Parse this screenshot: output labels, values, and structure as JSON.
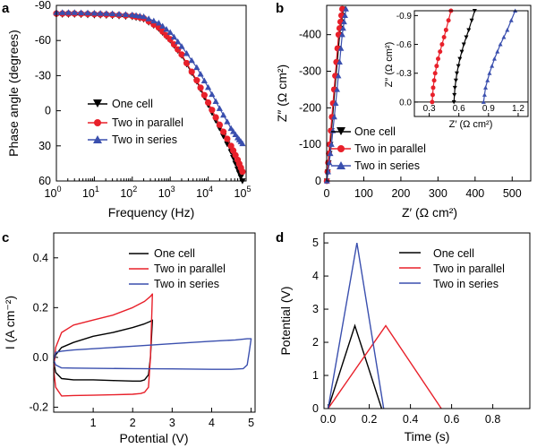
{
  "colors": {
    "one_cell": "#000000",
    "two_parallel": "#e8202a",
    "two_series": "#3a4fae",
    "parallel_marker": "#e8202a",
    "series_marker": "#3a4fae"
  },
  "legend": {
    "one_cell": "One cell",
    "two_parallel": "Two in parallel",
    "two_series": "Two in series"
  },
  "chart_data": [
    {
      "panel": "a",
      "type": "line",
      "xlabel": "Frequency (Hz)",
      "ylabel": "Phase angle (degrees)",
      "x_scale": "log",
      "xlim": [
        1,
        100000
      ],
      "ylim": [
        -90,
        60
      ],
      "y_inverted": true,
      "x_ticks": [
        "10^0",
        "10^1",
        "10^2",
        "10^3",
        "10^4",
        "10^5"
      ],
      "y_ticks": [
        -90,
        -60,
        -30,
        0,
        30,
        60
      ],
      "legend_position": "lower-left",
      "series": [
        {
          "name": "One cell",
          "marker": "triangle-down",
          "x": [
            1,
            3,
            10,
            30,
            100,
            200,
            500,
            1000,
            2000,
            5000,
            10000,
            20000,
            40000,
            60000,
            80000
          ],
          "y": [
            -82,
            -82,
            -81.5,
            -81,
            -80,
            -78,
            -70,
            -60,
            -47,
            -25,
            -5,
            15,
            35,
            50,
            60
          ]
        },
        {
          "name": "Two in parallel",
          "marker": "circle",
          "x": [
            1,
            3,
            10,
            30,
            100,
            200,
            500,
            1000,
            2000,
            5000,
            10000,
            20000,
            40000,
            60000,
            80000
          ],
          "y": [
            -83,
            -83,
            -82.5,
            -82,
            -81,
            -79,
            -71,
            -61,
            -48,
            -26,
            -7,
            12,
            30,
            42,
            52
          ]
        },
        {
          "name": "Two in series",
          "marker": "triangle-up",
          "x": [
            1,
            3,
            10,
            30,
            100,
            200,
            500,
            1000,
            2000,
            5000,
            10000,
            20000,
            40000,
            60000,
            80000
          ],
          "y": [
            -84,
            -84,
            -83.5,
            -83,
            -82,
            -80.5,
            -75,
            -67,
            -55,
            -37,
            -20,
            -2,
            15,
            23,
            28
          ]
        }
      ]
    },
    {
      "panel": "b",
      "type": "scatter",
      "xlabel": "Z′ (Ω cm²)",
      "ylabel": "Z″ (Ω cm²)",
      "xlim": [
        0,
        550
      ],
      "ylim": [
        0,
        -480
      ],
      "x_ticks": [
        0,
        100,
        200,
        300,
        400,
        500
      ],
      "y_ticks": [
        0,
        -100,
        -200,
        -300,
        -400
      ],
      "legend_position": "lower-right",
      "series": [
        {
          "name": "One cell",
          "marker": "triangle-down",
          "x": [
            0.5,
            10,
            22,
            35,
            45
          ],
          "y": [
            0,
            -100,
            -250,
            -400,
            -470
          ]
        },
        {
          "name": "Two in parallel",
          "marker": "circle",
          "x": [
            0.3,
            8,
            20,
            32,
            42
          ],
          "y": [
            0,
            -100,
            -250,
            -400,
            -470
          ]
        },
        {
          "name": "Two in series",
          "marker": "triangle-up",
          "x": [
            0.8,
            13,
            28,
            42,
            52
          ],
          "y": [
            0,
            -100,
            -250,
            -400,
            -470
          ]
        }
      ],
      "inset": {
        "xlabel": "Z′ (Ω cm²)",
        "ylabel": "Z″ (Ω cm²)",
        "xlim": [
          0.15,
          1.3
        ],
        "ylim": [
          0.15,
          -0.95
        ],
        "x_ticks": [
          "0.3",
          "0.6",
          "0.9",
          "1.2"
        ],
        "y_ticks": [
          "0.0",
          "-0.3",
          "-0.6",
          "-0.9"
        ],
        "series": [
          {
            "name": "One cell",
            "x": [
              0.55,
              0.56,
              0.58,
              0.61,
              0.65,
              0.7,
              0.76
            ],
            "y": [
              0.0,
              -0.15,
              -0.3,
              -0.45,
              -0.6,
              -0.75,
              -0.95
            ]
          },
          {
            "name": "Two in parallel",
            "x": [
              0.33,
              0.34,
              0.36,
              0.39,
              0.43,
              0.47,
              0.52
            ],
            "y": [
              0.0,
              -0.15,
              -0.3,
              -0.45,
              -0.6,
              -0.75,
              -0.95
            ]
          },
          {
            "name": "Two in series",
            "x": [
              0.85,
              0.87,
              0.91,
              0.96,
              1.02,
              1.09,
              1.17
            ],
            "y": [
              0.0,
              -0.15,
              -0.3,
              -0.45,
              -0.6,
              -0.75,
              -0.95
            ]
          }
        ]
      }
    },
    {
      "panel": "c",
      "type": "line",
      "xlabel": "Potential (V)",
      "ylabel": "I (A cm⁻²)",
      "xlim": [
        0,
        5.1
      ],
      "ylim": [
        -0.22,
        0.5
      ],
      "x_ticks": [
        1,
        2,
        3,
        4,
        5
      ],
      "y_ticks": [
        "-0.2",
        "0.0",
        "0.2",
        "0.4"
      ],
      "legend_position": "top-right",
      "series": [
        {
          "name": "One cell",
          "x": [
            0.0,
            0.05,
            0.2,
            0.5,
            1.0,
            1.5,
            2.0,
            2.3,
            2.45,
            2.5,
            2.45,
            2.4,
            2.3,
            2.2,
            2.0,
            1.5,
            1.0,
            0.5,
            0.2,
            0.05,
            0.0,
            0.0
          ],
          "y": [
            -0.02,
            0.01,
            0.04,
            0.06,
            0.085,
            0.1,
            0.12,
            0.135,
            0.145,
            0.15,
            0.0,
            -0.07,
            -0.09,
            -0.095,
            -0.095,
            -0.093,
            -0.09,
            -0.09,
            -0.085,
            -0.06,
            -0.02,
            -0.02
          ]
        },
        {
          "name": "Two in parallel",
          "x": [
            0.0,
            0.05,
            0.2,
            0.5,
            1.0,
            1.5,
            2.0,
            2.3,
            2.45,
            2.5,
            2.45,
            2.4,
            2.3,
            2.2,
            2.0,
            1.5,
            1.0,
            0.5,
            0.2,
            0.05,
            0.0,
            0.0
          ],
          "y": [
            -0.05,
            0.04,
            0.1,
            0.13,
            0.15,
            0.17,
            0.2,
            0.225,
            0.245,
            0.255,
            0.0,
            -0.12,
            -0.14,
            -0.145,
            -0.148,
            -0.15,
            -0.152,
            -0.153,
            -0.155,
            -0.12,
            -0.05,
            -0.05
          ]
        },
        {
          "name": "Two in series",
          "x": [
            0.0,
            0.05,
            0.2,
            0.5,
            1.0,
            2.0,
            3.0,
            4.0,
            4.6,
            4.9,
            5.0,
            4.95,
            4.9,
            4.8,
            4.5,
            4.0,
            3.0,
            2.0,
            1.0,
            0.5,
            0.2,
            0.05,
            0.0,
            0.0
          ],
          "y": [
            -0.01,
            0.02,
            0.025,
            0.03,
            0.035,
            0.045,
            0.055,
            0.065,
            0.07,
            0.075,
            0.075,
            0.02,
            -0.03,
            -0.045,
            -0.048,
            -0.048,
            -0.046,
            -0.045,
            -0.044,
            -0.043,
            -0.042,
            -0.03,
            -0.01,
            -0.01
          ]
        }
      ]
    },
    {
      "panel": "d",
      "type": "line",
      "xlabel": "Time (s)",
      "ylabel": "Potential (V)",
      "xlim": [
        -0.02,
        0.98
      ],
      "ylim": [
        0,
        5.3
      ],
      "x_ticks": [
        "0.0",
        "0.2",
        "0.4",
        "0.6",
        "0.8"
      ],
      "y_ticks": [
        0,
        1,
        2,
        3,
        4,
        5
      ],
      "legend_position": "top-right",
      "series": [
        {
          "name": "One cell",
          "x": [
            0.0,
            0.13,
            0.26
          ],
          "y": [
            0.0,
            2.5,
            0.0
          ]
        },
        {
          "name": "Two in parallel",
          "x": [
            0.0,
            0.28,
            0.55
          ],
          "y": [
            0.0,
            2.5,
            0.0
          ]
        },
        {
          "name": "Two in series",
          "x": [
            0.0,
            0.14,
            0.27
          ],
          "y": [
            0.0,
            5.0,
            0.0
          ]
        }
      ]
    }
  ],
  "panels": {
    "a": {
      "letter": "a",
      "xlabel": "Frequency (Hz)",
      "ylabel": "Phase angle (degrees)",
      "x_tick_base": "10",
      "x_tick_exps": [
        "0",
        "1",
        "2",
        "3",
        "4",
        "5"
      ],
      "y_ticks": [
        "-90",
        "-60",
        "-30",
        "0",
        "30",
        "60"
      ]
    },
    "b": {
      "letter": "b",
      "xlabel": "Z′ (Ω cm²)",
      "ylabel": "Z″ (Ω cm²)",
      "x_ticks": [
        "0",
        "100",
        "200",
        "300",
        "400",
        "500"
      ],
      "y_ticks": [
        "0",
        "-100",
        "-200",
        "-300",
        "-400"
      ],
      "inset_xlabel": "Z′ (Ω cm²)",
      "inset_ylabel": "Z″ (Ω cm²)"
    },
    "c": {
      "letter": "c",
      "xlabel": "Potential (V)",
      "ylabel": "I (A cm⁻²)",
      "x_ticks": [
        "1",
        "2",
        "3",
        "4",
        "5"
      ],
      "y_ticks": [
        "-0.2",
        "0.0",
        "0.2",
        "0.4"
      ]
    },
    "d": {
      "letter": "d",
      "xlabel": "Time (s)",
      "ylabel": "Potential (V)",
      "x_ticks": [
        "0.0",
        "0.2",
        "0.4",
        "0.6",
        "0.8"
      ],
      "y_ticks": [
        "0",
        "1",
        "2",
        "3",
        "4",
        "5"
      ]
    }
  }
}
